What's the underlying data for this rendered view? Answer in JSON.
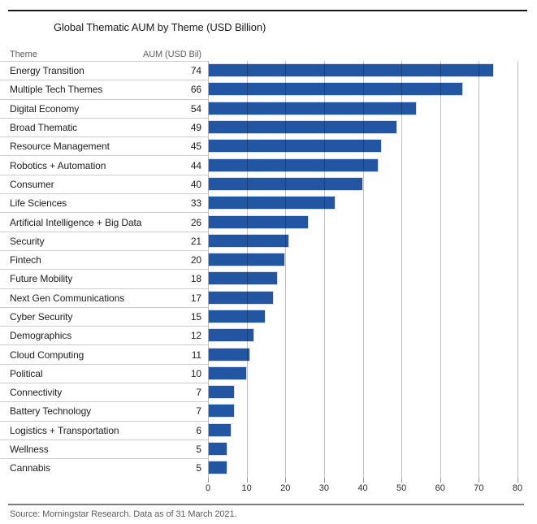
{
  "title": "Global Thematic AUM by Theme (USD Billion)",
  "table": {
    "theme_header": "Theme",
    "aum_header": "AUM (USD Bil)"
  },
  "source": "Source: Morningstar Research. Data as of 31 March 2021.",
  "colors": {
    "bar": "#2256a3",
    "top_rule": "#1a1a1a",
    "bottom_rule": "#7c7c7c",
    "row_separator": "#cccccc",
    "gridline": "rgba(0,0,0,0.24)",
    "label_text": "#1e1e1e",
    "muted_text": "#5e5e5e"
  },
  "chart_data": {
    "type": "bar",
    "orientation": "horizontal",
    "title": "Global Thematic AUM by Theme (USD Billion)",
    "xlabel": "",
    "ylabel": "Theme",
    "value_label": "AUM (USD Bil)",
    "categories": [
      "Energy Transition",
      "Multiple Tech Themes",
      "Digital Economy",
      "Broad Thematic",
      "Resource Management",
      "Robotics + Automation",
      "Consumer",
      "Life Sciences",
      "Artificial Intelligence + Big Data",
      "Security",
      "Fintech",
      "Future Mobility",
      "Next Gen Communications",
      "Cyber Security",
      "Demographics",
      "Cloud Computing",
      "Political",
      "Connectivity",
      "Battery Technology",
      "Logistics + Transportation",
      "Wellness",
      "Cannabis"
    ],
    "values": [
      74,
      66,
      54,
      49,
      45,
      44,
      40,
      33,
      26,
      21,
      20,
      18,
      17,
      15,
      12,
      11,
      10,
      7,
      7,
      6,
      5,
      5
    ],
    "xlim": [
      0,
      80
    ],
    "x_ticks": [
      0,
      10,
      20,
      30,
      40,
      50,
      60,
      70,
      80
    ],
    "grid": true,
    "legend": "none"
  }
}
